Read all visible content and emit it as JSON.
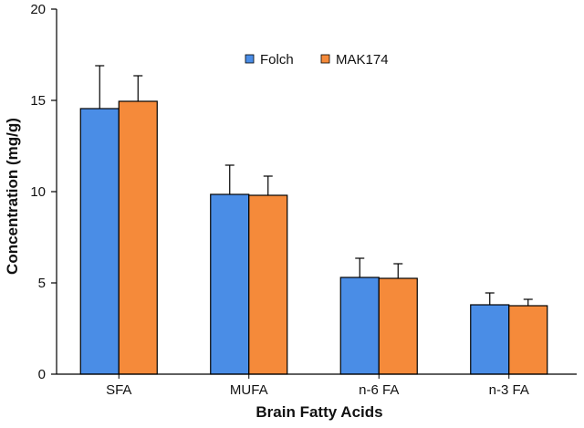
{
  "chart_data": {
    "type": "bar",
    "categories": [
      "SFA",
      "MUFA",
      "n-6 FA",
      "n-3 FA"
    ],
    "series": [
      {
        "name": "Folch",
        "color": "#4a8de6",
        "values": [
          14.55,
          9.85,
          5.3,
          3.8
        ],
        "errors": [
          2.35,
          1.6,
          1.05,
          0.65
        ]
      },
      {
        "name": "MAK174",
        "color": "#f58a3a",
        "values": [
          14.95,
          9.8,
          5.25,
          3.75
        ],
        "errors": [
          1.4,
          1.05,
          0.8,
          0.35
        ]
      }
    ],
    "xlabel": "Brain Fatty Acids",
    "ylabel": "Concentration (mg/g)",
    "ylim": [
      0,
      20
    ],
    "yticks": [
      0,
      5,
      10,
      15,
      20
    ],
    "grid": false,
    "legend_position": "top-center"
  }
}
